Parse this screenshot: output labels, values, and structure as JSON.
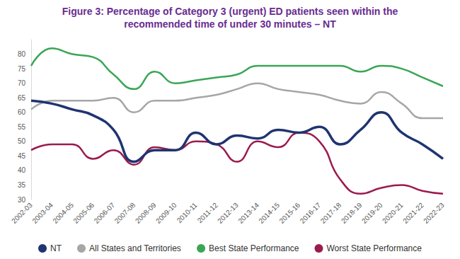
{
  "chart_data": {
    "type": "line",
    "title": "Figure 3: Percentage of Category 3 (urgent) ED patients seen within the\nrecommended time of under 30 minutes – NT",
    "categories": [
      "2002-03",
      "2003-04",
      "2004-05",
      "2005-06",
      "2006-07",
      "2007-08",
      "2008-09",
      "2009-10",
      "2010-11",
      "2011-12",
      "2012-13",
      "2013-14",
      "2014-15",
      "2015-16",
      "2016-17",
      "2017-18",
      "2018-19",
      "2019-20",
      "2020-21",
      "2021-22",
      "2022-23"
    ],
    "series": [
      {
        "name": "NT",
        "color": "#1f3470",
        "values": [
          64,
          63,
          61,
          59,
          54,
          43,
          47,
          47,
          53,
          49,
          52,
          51,
          54,
          53,
          55,
          49,
          54,
          60,
          53,
          49,
          44
        ]
      },
      {
        "name": "All States and Territories",
        "color": "#a6a6a6",
        "values": [
          61,
          64,
          64,
          64,
          65,
          60,
          64,
          64,
          65,
          66,
          68,
          70,
          68,
          67,
          66,
          64,
          63,
          67,
          63,
          58,
          58
        ]
      },
      {
        "name": "Best State Performance",
        "color": "#3aa655",
        "values": [
          76,
          82,
          80,
          79,
          73,
          68,
          74,
          70,
          71,
          72,
          73,
          76,
          76,
          76,
          76,
          76,
          74,
          76,
          75,
          72,
          69
        ]
      },
      {
        "name": "Worst State Performance",
        "color": "#9b1b4e",
        "values": [
          47,
          49,
          49,
          44,
          47,
          42,
          48,
          47,
          50,
          49,
          43,
          50,
          48,
          53,
          50,
          37,
          32,
          34,
          35,
          33,
          32
        ]
      }
    ],
    "ylim": [
      30,
      85
    ],
    "yticks": [
      30,
      35,
      40,
      45,
      50,
      55,
      60,
      65,
      70,
      75,
      80
    ],
    "grid": false,
    "legend": "bottom"
  }
}
